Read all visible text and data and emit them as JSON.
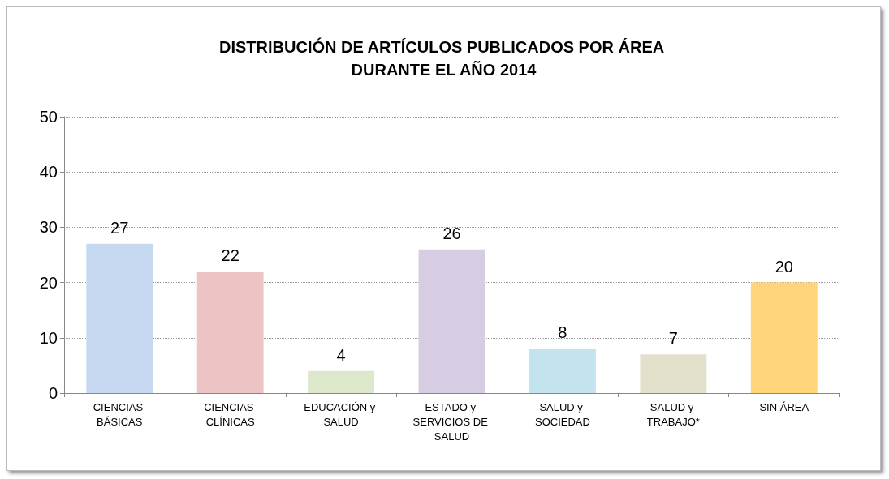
{
  "chart_data": {
    "type": "bar",
    "title": "DISTRIBUCIÓN DE ARTÍCULOS PUBLICADOS POR ÁREA DURANTE EL AÑO 2014",
    "categories": [
      "CIENCIAS BÁSICAS",
      "CIENCIAS CLÍNICAS",
      "EDUCACIÓN y SALUD",
      "ESTADO y SERVICIOS DE SALUD",
      "SALUD y SOCIEDAD",
      "SALUD y TRABAJO*",
      "SIN ÁREA"
    ],
    "values": [
      27,
      22,
      4,
      26,
      8,
      7,
      20
    ],
    "colors": [
      "#c6d9f0",
      "#ecc4c4",
      "#dde8cb",
      "#d6cde3",
      "#c3e4ee",
      "#e3e0cc",
      "#ffd47a"
    ],
    "ylim": [
      0,
      50
    ],
    "yticks": [
      0,
      10,
      20,
      30,
      40,
      50
    ],
    "grid": "y",
    "data_labels": true
  }
}
